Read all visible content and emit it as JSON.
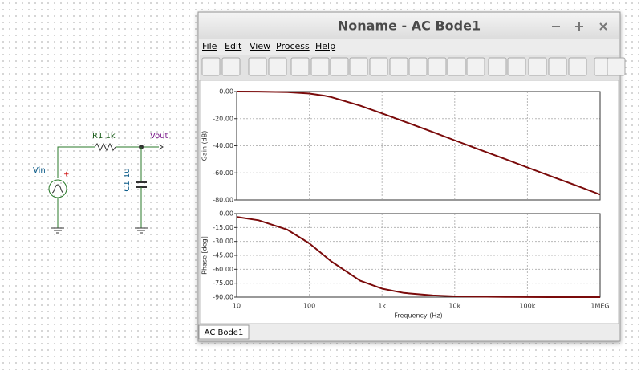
{
  "schematic": {
    "source": "Vin",
    "plus": "+",
    "resistor": "R1 1k",
    "capacitor": "C1 1u",
    "output": "Vout"
  },
  "window": {
    "title": "Noname - AC Bode1",
    "menu": [
      "File",
      "Edit",
      "View",
      "Process",
      "Help"
    ],
    "tab": "AC Bode1"
  },
  "chart_data": [
    {
      "type": "line",
      "ylabel": "Gain (dB)",
      "xscale": "log",
      "grid": true,
      "color": "#7a0a0a",
      "x": [
        10,
        20,
        50,
        100,
        159,
        200,
        500,
        1000,
        2000,
        5000,
        10000,
        20000,
        50000,
        100000,
        200000,
        500000,
        1000000
      ],
      "values": [
        -0.02,
        -0.07,
        -0.41,
        -1.46,
        -3.01,
        -4.1,
        -10.4,
        -16.1,
        -22.0,
        -29.9,
        -36.0,
        -42.0,
        -49.9,
        -56.0,
        -62.0,
        -69.9,
        -76.0
      ],
      "xlim": [
        10,
        1000000
      ],
      "xticks": [
        10,
        100,
        1000,
        10000,
        100000,
        1000000
      ],
      "ylim": [
        -80,
        0
      ],
      "yticks": [
        {
          "value": 0,
          "label": "0.00"
        },
        {
          "value": -20,
          "label": "-20.00"
        },
        {
          "value": -40,
          "label": "-40.00"
        },
        {
          "value": -60,
          "label": "-60.00"
        },
        {
          "value": -80,
          "label": "-80.00"
        }
      ]
    },
    {
      "type": "line",
      "ylabel": "Phase [deg]",
      "xlabel": "Frequency (Hz)",
      "xscale": "log",
      "grid": true,
      "color": "#7a0a0a",
      "x": [
        10,
        20,
        50,
        100,
        159,
        200,
        500,
        1000,
        2000,
        5000,
        10000,
        20000,
        50000,
        100000,
        200000,
        500000,
        1000000
      ],
      "values": [
        -3.6,
        -7.2,
        -17.4,
        -32.1,
        -45.0,
        -51.5,
        -72.3,
        -80.9,
        -85.5,
        -88.2,
        -89.1,
        -89.5,
        -89.8,
        -89.9,
        -90.0,
        -90.0,
        -90.0
      ],
      "xlim": [
        10,
        1000000
      ],
      "xticks": [
        10,
        100,
        {
          "value": 1000,
          "label": "1k"
        },
        {
          "value": 10000,
          "label": "10k"
        },
        {
          "value": 100000,
          "label": "100k"
        },
        {
          "value": 1000000,
          "label": "1MEG"
        }
      ],
      "ylim": [
        -90,
        0
      ],
      "yticks": [
        {
          "value": 0,
          "label": "0.00"
        },
        {
          "value": -15,
          "label": "-15.00"
        },
        {
          "value": -30,
          "label": "-30.00"
        },
        {
          "value": -45,
          "label": "-45.00"
        },
        {
          "value": -60,
          "label": "-60.00"
        },
        {
          "value": -75,
          "label": "-75.00"
        },
        {
          "value": -90,
          "label": "-90.00"
        }
      ]
    }
  ]
}
